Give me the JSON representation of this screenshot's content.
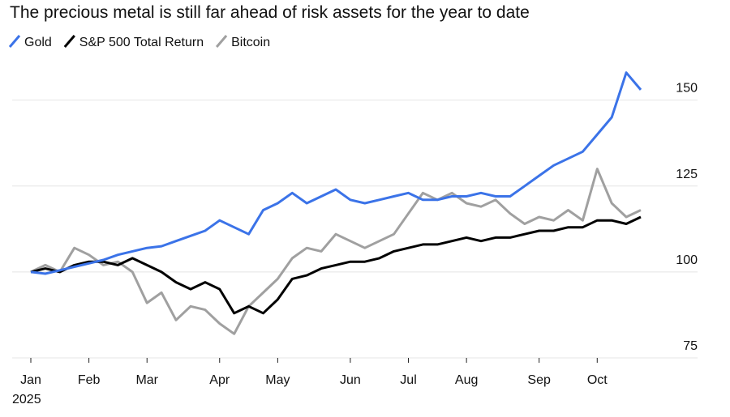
{
  "chart_data": {
    "type": "line",
    "title": "The precious metal is still far ahead of risk assets for the year to date",
    "categories": [
      "Jan",
      null,
      null,
      null,
      "Feb",
      null,
      null,
      null,
      "Mar",
      null,
      null,
      null,
      null,
      "Apr",
      null,
      null,
      null,
      "May",
      null,
      null,
      null,
      null,
      "Jun",
      null,
      null,
      null,
      "Jul",
      null,
      null,
      null,
      "Aug",
      null,
      null,
      null,
      null,
      "Sep",
      null,
      null,
      null,
      "Oct",
      null,
      null,
      null
    ],
    "x_year_label": "2025",
    "series": [
      {
        "name": "Gold",
        "color": "#3b73e8",
        "values": [
          100,
          99.5,
          100.5,
          101.5,
          102.5,
          103.5,
          105,
          106,
          107,
          107.5,
          109,
          110.5,
          112,
          115,
          113,
          111,
          118,
          120,
          123,
          120,
          122,
          124,
          121,
          120,
          121,
          122,
          123,
          121,
          121,
          122,
          122,
          123,
          122,
          122,
          125,
          128,
          131,
          133,
          135,
          140,
          145,
          158,
          153
        ]
      },
      {
        "name": "S&P 500 Total Return",
        "color": "#000000",
        "values": [
          100,
          101,
          100,
          102,
          103,
          103,
          102,
          104,
          102,
          100,
          97,
          95,
          97,
          95,
          88,
          90,
          88,
          92,
          98,
          99,
          101,
          102,
          103,
          103,
          104,
          106,
          107,
          108,
          108,
          109,
          110,
          109,
          110,
          110,
          111,
          112,
          112,
          113,
          113,
          115,
          115,
          114,
          116
        ]
      },
      {
        "name": "Bitcoin",
        "color": "#a0a0a0",
        "values": [
          100,
          102,
          100,
          107,
          105,
          102,
          103,
          100,
          91,
          94,
          86,
          90,
          89,
          85,
          82,
          90,
          94,
          98,
          104,
          107,
          106,
          111,
          109,
          107,
          109,
          111,
          117,
          123,
          121,
          123,
          120,
          119,
          121,
          117,
          114,
          116,
          115,
          118,
          115,
          130,
          120,
          116,
          118
        ]
      }
    ],
    "ylim": [
      75,
      165
    ],
    "yticks": [
      75,
      100,
      125,
      150
    ],
    "grid": true,
    "legend": "top-left"
  }
}
